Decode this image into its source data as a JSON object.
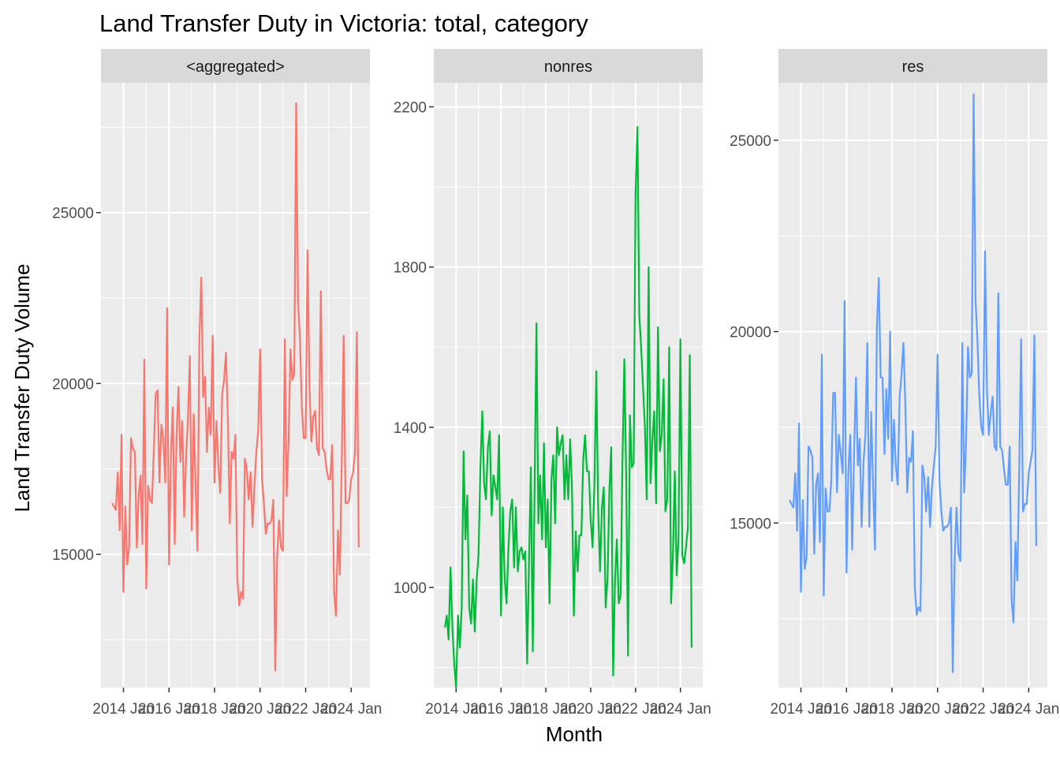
{
  "chart_data": {
    "type": "line",
    "title": "Land Transfer Duty in Victoria: total, category",
    "xlabel": "Month",
    "ylabel": "Land Transfer Duty Volume",
    "x_ticks": [
      "2014 Jan",
      "2016 Jan",
      "2018 Jan",
      "2020 Jan",
      "2022 Jan",
      "2024 Jan"
    ],
    "x_start": "2013 Jul",
    "x_end": "2024 Jan",
    "grid": true,
    "legend": "none",
    "panels": [
      {
        "name": "<aggregated>",
        "color": "#F8766D",
        "ylim": [
          11100,
          28800
        ],
        "yticks": [
          15000,
          20000,
          25000
        ],
        "values": [
          16500,
          16400,
          16300,
          17400,
          15700,
          18500,
          13900,
          16400,
          14700,
          15200,
          18400,
          18100,
          18000,
          15200,
          16700,
          17300,
          15300,
          20700,
          14000,
          17000,
          16600,
          16500,
          18000,
          19700,
          19800,
          17100,
          18800,
          18400,
          17100,
          22200,
          14700,
          17900,
          19300,
          15300,
          18500,
          19900,
          17700,
          18900,
          16100,
          17800,
          19000,
          20800,
          15700,
          19100,
          17000,
          15100,
          21300,
          23100,
          19600,
          20200,
          18000,
          19300,
          18500,
          21400,
          17100,
          18900,
          17600,
          16800,
          19700,
          20100,
          20900,
          19000,
          15900,
          18000,
          17800,
          18500,
          14300,
          13500,
          13900,
          13700,
          17800,
          17500,
          16600,
          17400,
          15800,
          17000,
          18000,
          18600,
          21000,
          17200,
          16500,
          15600,
          15900,
          15900,
          16000,
          16600,
          11600,
          14900,
          16000,
          15200,
          15100,
          21300,
          16700,
          18300,
          21000,
          20100,
          20300,
          28200,
          22400,
          21300,
          19300,
          18400,
          18400,
          23900,
          19900,
          18300,
          19000,
          19200,
          18100,
          17900,
          22700,
          18100,
          18000,
          17500,
          17200,
          17200,
          18200,
          13900,
          13200,
          15700,
          14400,
          17700,
          21400,
          16500,
          16500,
          16600,
          17200,
          17400,
          18000,
          21500,
          15200
        ],
        "x_tick_labels": [
          "2014 Jan",
          "2016 Jan",
          "2018 Jan",
          "2020 Jan",
          "2022 Jan",
          "2024 Jan"
        ]
      },
      {
        "name": "nonres",
        "color": "#00BA38",
        "ylim": [
          750,
          2260
        ],
        "yticks": [
          1000,
          1400,
          1800,
          2200
        ],
        "values": [
          900,
          930,
          870,
          1050,
          900,
          810,
          750,
          930,
          850,
          950,
          1340,
          1120,
          1230,
          950,
          910,
          1020,
          890,
          1020,
          1080,
          1300,
          1440,
          1260,
          1220,
          1350,
          1390,
          1180,
          1280,
          1250,
          1220,
          1380,
          930,
          1200,
          1020,
          960,
          1100,
          1190,
          1220,
          1050,
          1200,
          1040,
          1090,
          1100,
          1070,
          1090,
          810,
          1060,
          1300,
          840,
          1240,
          1660,
          1160,
          1280,
          1120,
          1360,
          1100,
          1220,
          960,
          1270,
          1330,
          1160,
          1400,
          1330,
          1360,
          1380,
          1220,
          1330,
          1220,
          1370,
          1250,
          930,
          1140,
          1040,
          1130,
          1130,
          1320,
          1380,
          1290,
          1290,
          1170,
          1100,
          1260,
          1540,
          1200,
          1040,
          1200,
          1250,
          950,
          1020,
          1240,
          1350,
          780,
          1020,
          1120,
          960,
          980,
          1310,
          1570,
          1270,
          830,
          1430,
          1300,
          1310,
          1980,
          2150,
          1680,
          1600,
          1500,
          1400,
          1220,
          1800,
          1260,
          1370,
          1440,
          1210,
          1650,
          1340,
          1380,
          1520,
          1190,
          1220,
          1600,
          960,
          1080,
          1290,
          1030,
          1120,
          1620,
          1080,
          1060,
          1100,
          1150,
          1580,
          850
        ],
        "x_tick_labels": [
          "2014 Jan",
          "2016 Jan",
          "2018 Jan",
          "2020 Jan",
          "2022 Jan",
          "2024 Jan"
        ]
      },
      {
        "name": "res",
        "color": "#619CFF",
        "ylim": [
          10700,
          26500
        ],
        "yticks": [
          15000,
          20000,
          25000
        ],
        "values": [
          15600,
          15500,
          15400,
          16300,
          14800,
          17600,
          13200,
          15600,
          13800,
          14100,
          17000,
          16900,
          16700,
          14200,
          16000,
          16300,
          14500,
          19400,
          13100,
          15900,
          15300,
          15300,
          16100,
          18400,
          18400,
          15800,
          17300,
          16800,
          16300,
          20800,
          13700,
          16400,
          17300,
          14300,
          16800,
          18800,
          16500,
          17200,
          14900,
          16600,
          17300,
          19700,
          14900,
          17900,
          16000,
          14300,
          20100,
          21400,
          18800,
          18800,
          16800,
          18500,
          17200,
          20000,
          16100,
          17700,
          16500,
          16000,
          18300,
          18900,
          19700,
          18100,
          15800,
          16700,
          16600,
          17400,
          13300,
          12600,
          12800,
          12700,
          16500,
          16200,
          15300,
          16200,
          14900,
          15900,
          16500,
          17000,
          19400,
          16100,
          15300,
          14800,
          14900,
          14900,
          15000,
          15400,
          11100,
          14000,
          15400,
          14200,
          14000,
          19700,
          15800,
          17100,
          19600,
          18800,
          18900,
          26200,
          20800,
          19800,
          18300,
          17500,
          17300,
          22100,
          18500,
          17300,
          17900,
          18300,
          17000,
          16900,
          21000,
          17000,
          16900,
          16400,
          16000,
          16000,
          17000,
          13000,
          12400,
          14500,
          13500,
          16400,
          19800,
          15300,
          15500,
          15500,
          16300,
          16600,
          16900,
          19900,
          14400
        ],
        "x_tick_labels": [
          "2014 Jan",
          "2016 Jan",
          "2018 Jan",
          "2020 Jan",
          "2022 Jan",
          "2024 Jan"
        ]
      }
    ]
  }
}
